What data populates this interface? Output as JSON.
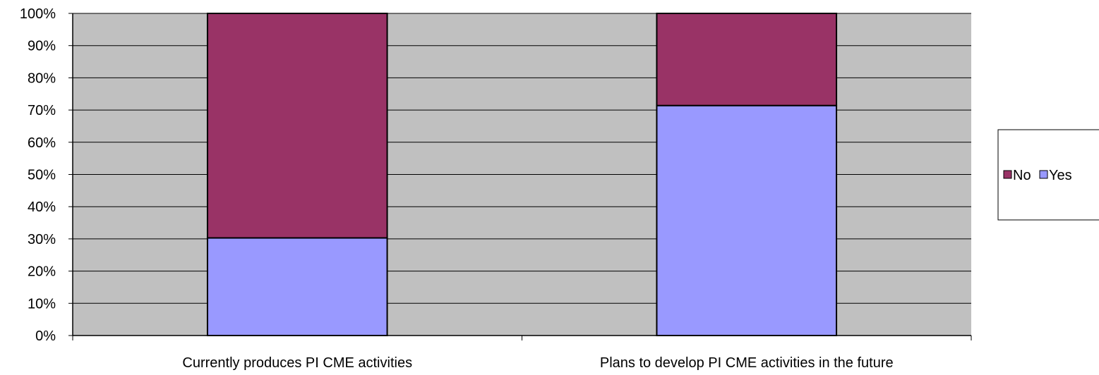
{
  "chart_data": {
    "type": "bar",
    "stacked": true,
    "percent_stacked": true,
    "categories": [
      "Currently produces PI CME activities",
      "Plans to develop PI CME activities in the future"
    ],
    "series": [
      {
        "name": "Yes",
        "values": [
          30.3,
          71.4
        ]
      },
      {
        "name": "No",
        "values": [
          69.7,
          28.6
        ]
      }
    ],
    "ylim": [
      0,
      100
    ],
    "yticks": [
      "0%",
      "10%",
      "20%",
      "30%",
      "40%",
      "50%",
      "60%",
      "70%",
      "80%",
      "90%",
      "100%"
    ],
    "grid": true,
    "legend_position": "right",
    "legend_order": [
      "No",
      "Yes"
    ],
    "colors": {
      "Yes": "#9999ff",
      "No": "#993366",
      "plot_background": "#c0c0c0"
    },
    "title": "",
    "xlabel": "",
    "ylabel": ""
  }
}
